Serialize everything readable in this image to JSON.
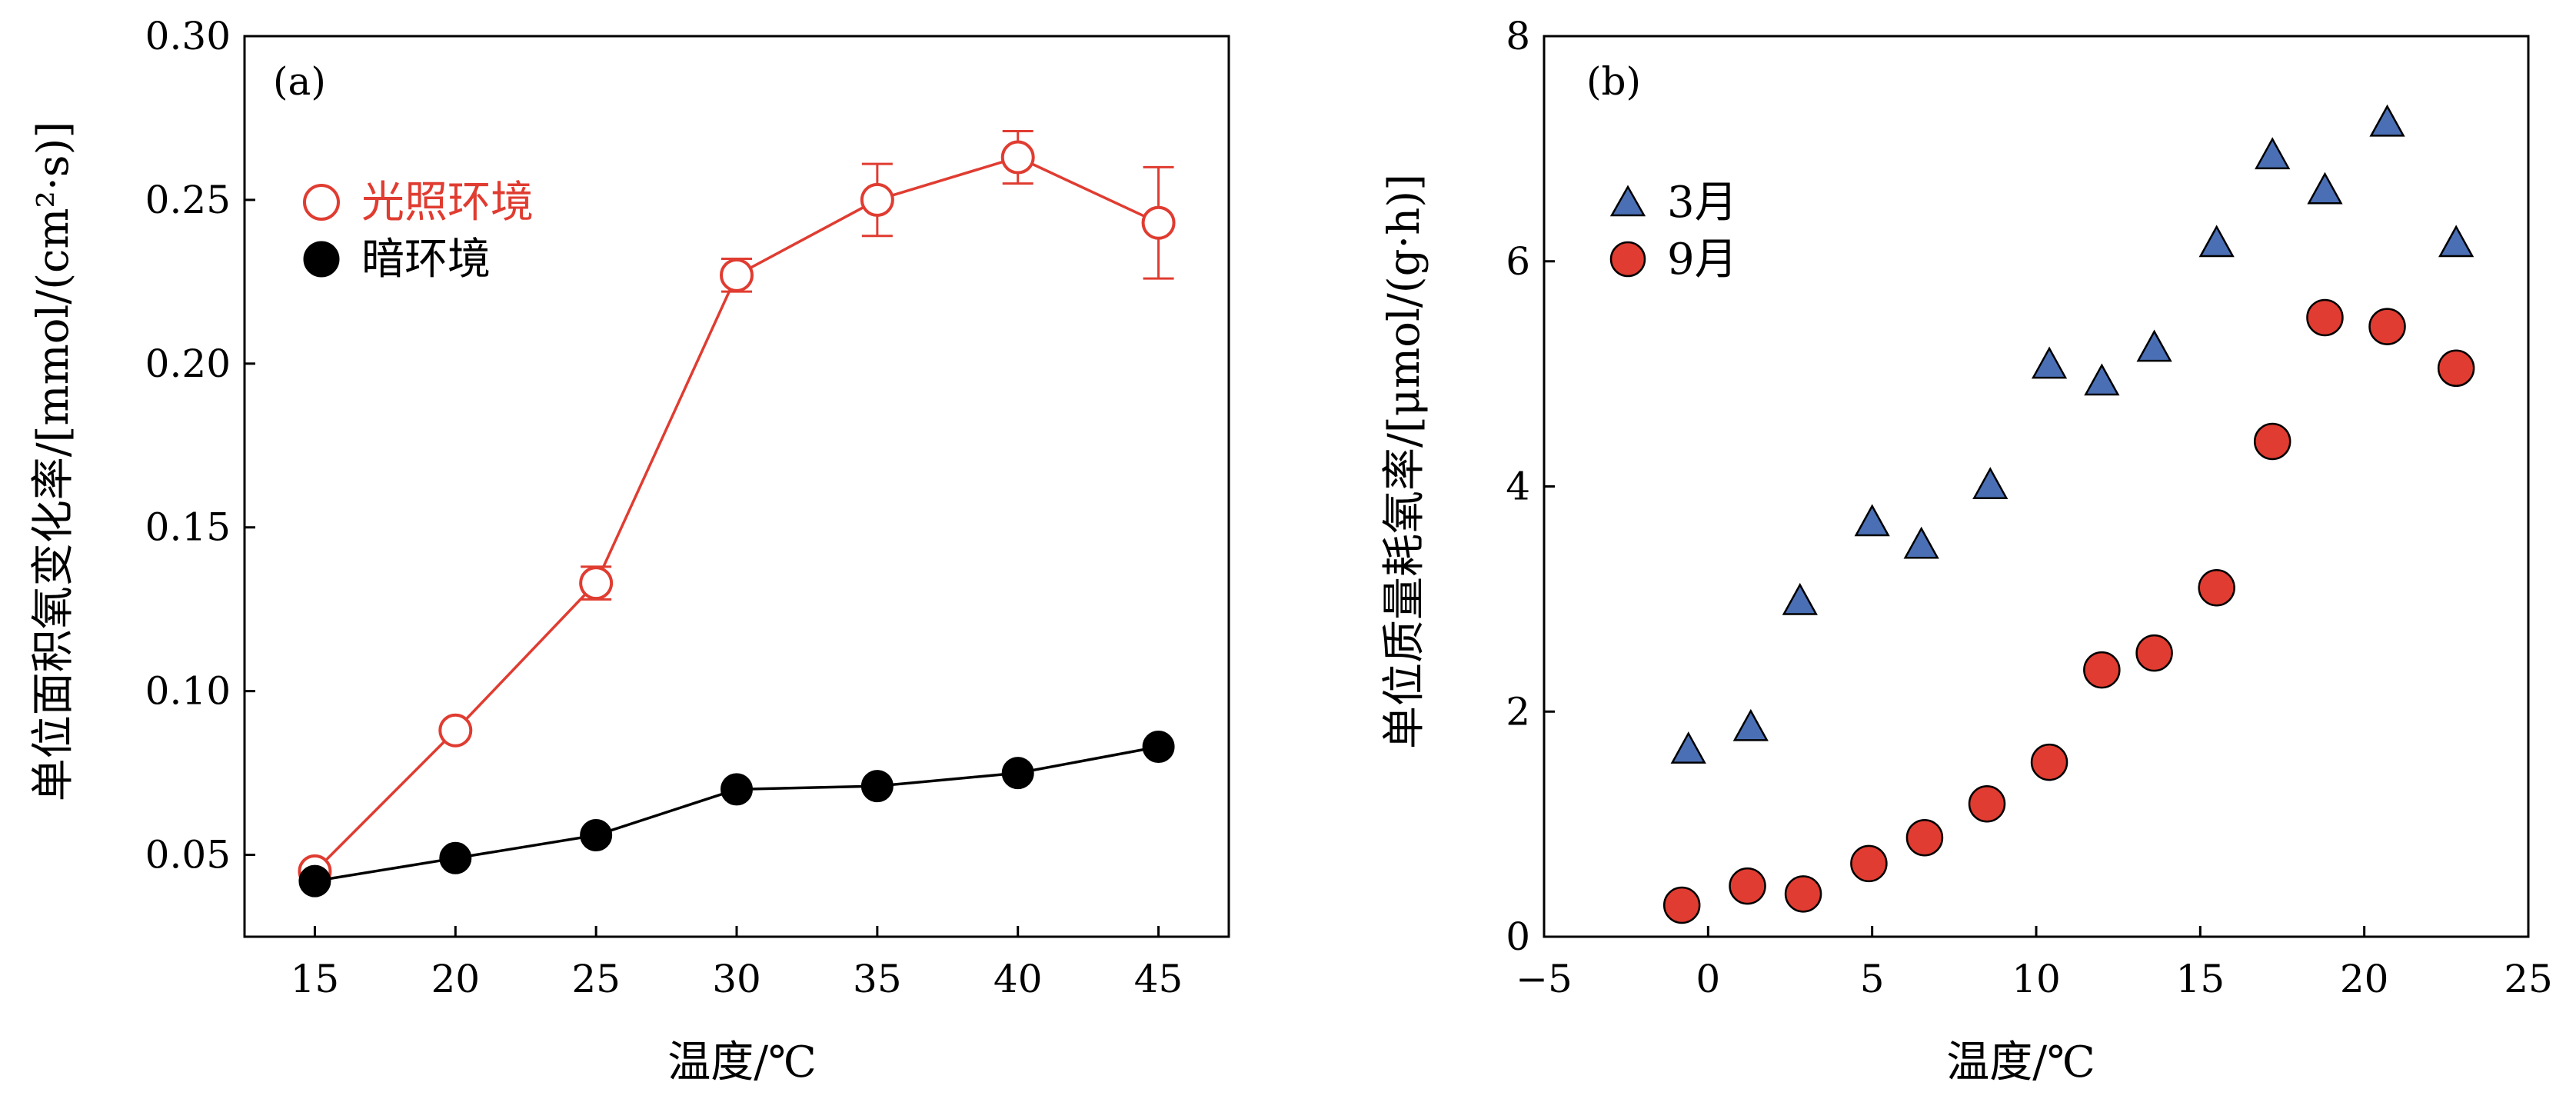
{
  "chart_data": [
    {
      "panel": "(a)",
      "type": "line",
      "xlabel": "温度/℃",
      "ylabel": "单位面积氧变化率/[mmol/(cm²·s)]",
      "xlim": [
        12.5,
        47.5
      ],
      "ylim": [
        0.025,
        0.3
      ],
      "xticks": [
        "15",
        "20",
        "25",
        "30",
        "35",
        "40",
        "45"
      ],
      "yticks": [
        "0.05",
        "0.10",
        "0.15",
        "0.20",
        "0.25",
        "0.30"
      ],
      "legend_position": "upper-left",
      "series": [
        {
          "name": "光照环境",
          "color": "#e03c31",
          "marker": "open-circle",
          "x": [
            15,
            20,
            25,
            30,
            35,
            40,
            45
          ],
          "y": [
            0.045,
            0.088,
            0.133,
            0.227,
            0.25,
            0.263,
            0.243
          ],
          "err": [
            0.0,
            0.0,
            0.005,
            0.005,
            0.011,
            0.008,
            0.017
          ]
        },
        {
          "name": "暗环境",
          "color": "#000000",
          "marker": "filled-circle",
          "x": [
            15,
            20,
            25,
            30,
            35,
            40,
            45
          ],
          "y": [
            0.042,
            0.049,
            0.056,
            0.07,
            0.071,
            0.075,
            0.083
          ],
          "err": [
            0,
            0,
            0,
            0,
            0,
            0,
            0
          ]
        }
      ]
    },
    {
      "panel": "(b)",
      "type": "scatter",
      "xlabel": "温度/℃",
      "ylabel": "单位质量耗氧率/[μmol/(g·h)]",
      "xlim": [
        -5,
        25
      ],
      "ylim": [
        0,
        8
      ],
      "xticks": [
        "−5",
        "0",
        "5",
        "10",
        "15",
        "20",
        "25"
      ],
      "yticks": [
        "0",
        "2",
        "4",
        "6",
        "8"
      ],
      "legend_position": "upper-left",
      "series": [
        {
          "name": "3月",
          "color": "#4a6fb5",
          "marker": "triangle",
          "x": [
            -0.6,
            1.3,
            2.8,
            5.0,
            6.5,
            8.6,
            10.4,
            12.0,
            13.6,
            15.5,
            17.2,
            18.8,
            20.7,
            22.8
          ],
          "y": [
            1.65,
            1.85,
            2.97,
            3.67,
            3.47,
            4.0,
            5.07,
            4.92,
            5.22,
            6.15,
            6.93,
            6.62,
            7.22,
            6.15
          ]
        },
        {
          "name": "9月",
          "color": "#e03c31",
          "marker": "circle",
          "x": [
            -0.8,
            1.2,
            2.9,
            4.9,
            6.6,
            8.5,
            10.4,
            12.0,
            13.6,
            15.5,
            17.2,
            18.8,
            20.7,
            22.8
          ],
          "y": [
            0.28,
            0.45,
            0.38,
            0.65,
            0.88,
            1.18,
            1.55,
            2.37,
            2.52,
            3.1,
            4.4,
            5.5,
            5.42,
            5.05
          ]
        }
      ]
    }
  ]
}
